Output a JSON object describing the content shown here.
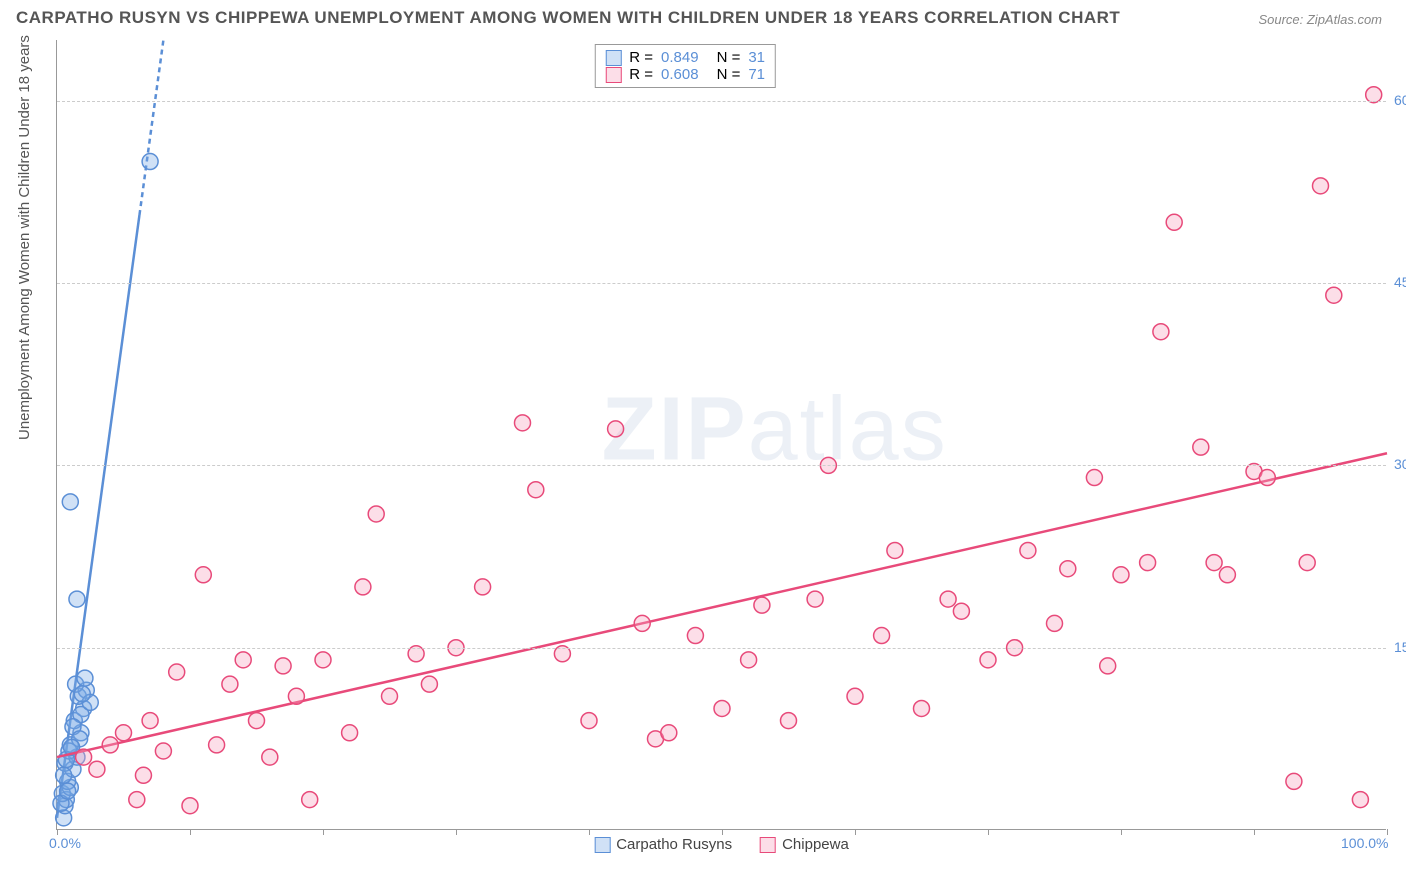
{
  "title": "CARPATHO RUSYN VS CHIPPEWA UNEMPLOYMENT AMONG WOMEN WITH CHILDREN UNDER 18 YEARS CORRELATION CHART",
  "source": "Source: ZipAtlas.com",
  "y_axis_label": "Unemployment Among Women with Children Under 18 years",
  "watermark": {
    "bold": "ZIP",
    "light": "atlas"
  },
  "chart": {
    "type": "scatter",
    "xlim": [
      0,
      100
    ],
    "ylim": [
      0,
      65
    ],
    "x_ticks": [
      0,
      10,
      20,
      30,
      40,
      50,
      60,
      70,
      80,
      90,
      100
    ],
    "x_tick_labels": {
      "0": "0.0%",
      "100": "100.0%"
    },
    "y_gridlines": [
      15,
      30,
      45,
      60
    ],
    "y_tick_labels": {
      "15": "15.0%",
      "30": "30.0%",
      "45": "45.0%",
      "60": "60.0%"
    },
    "background_color": "#ffffff",
    "grid_color": "#cccccc",
    "axis_color": "#999999",
    "tick_label_color": "#5b8fd6",
    "marker_radius": 8,
    "marker_stroke_width": 1.5,
    "trend_line_width": 2.5
  },
  "series": [
    {
      "id": "carpatho",
      "name": "Carpatho Rusyns",
      "fill_color": "rgba(120,170,230,0.35)",
      "stroke_color": "#5b8fd6",
      "R": "0.849",
      "N": "31",
      "trend": {
        "x1": 0,
        "y1": 1,
        "x2": 8,
        "y2": 65,
        "dash_after_x": 6.2
      },
      "points": [
        [
          0.5,
          1
        ],
        [
          0.6,
          2
        ],
        [
          0.7,
          2.5
        ],
        [
          0.4,
          3
        ],
        [
          1,
          3.5
        ],
        [
          0.8,
          4
        ],
        [
          1.2,
          5
        ],
        [
          0.6,
          5.5
        ],
        [
          1.5,
          6
        ],
        [
          1,
          7
        ],
        [
          1.8,
          8
        ],
        [
          1.3,
          9
        ],
        [
          2,
          10
        ],
        [
          1.6,
          11
        ],
        [
          2.2,
          11.5
        ],
        [
          1.4,
          12
        ],
        [
          1.8,
          9.5
        ],
        [
          2.5,
          10.5
        ],
        [
          1.2,
          8.5
        ],
        [
          0.9,
          6.5
        ],
        [
          1.7,
          7.5
        ],
        [
          2.1,
          12.5
        ],
        [
          0.5,
          4.5
        ],
        [
          0.7,
          5.8
        ],
        [
          1.1,
          6.8
        ],
        [
          1.9,
          11.2
        ],
        [
          0.3,
          2.2
        ],
        [
          0.8,
          3.2
        ],
        [
          1.5,
          19
        ],
        [
          1,
          27
        ],
        [
          7,
          55
        ]
      ]
    },
    {
      "id": "chippewa",
      "name": "Chippewa",
      "fill_color": "rgba(245,160,190,0.35)",
      "stroke_color": "#e84a7a",
      "R": "0.608",
      "N": "71",
      "trend": {
        "x1": 0,
        "y1": 6,
        "x2": 100,
        "y2": 31
      },
      "points": [
        [
          2,
          6
        ],
        [
          3,
          5
        ],
        [
          4,
          7
        ],
        [
          5,
          8
        ],
        [
          6,
          2.5
        ],
        [
          7,
          9
        ],
        [
          8,
          6.5
        ],
        [
          9,
          13
        ],
        [
          10,
          2
        ],
        [
          11,
          21
        ],
        [
          12,
          7
        ],
        [
          13,
          12
        ],
        [
          14,
          14
        ],
        [
          15,
          9
        ],
        [
          16,
          6
        ],
        [
          17,
          13.5
        ],
        [
          18,
          11
        ],
        [
          19,
          2.5
        ],
        [
          20,
          14
        ],
        [
          22,
          8
        ],
        [
          23,
          20
        ],
        [
          24,
          26
        ],
        [
          25,
          11
        ],
        [
          27,
          14.5
        ],
        [
          28,
          12
        ],
        [
          30,
          15
        ],
        [
          32,
          20
        ],
        [
          35,
          33.5
        ],
        [
          36,
          28
        ],
        [
          38,
          14.5
        ],
        [
          40,
          9
        ],
        [
          42,
          33
        ],
        [
          44,
          17
        ],
        [
          45,
          7.5
        ],
        [
          48,
          16
        ],
        [
          50,
          10
        ],
        [
          52,
          14
        ],
        [
          53,
          18.5
        ],
        [
          55,
          9
        ],
        [
          57,
          19
        ],
        [
          58,
          30
        ],
        [
          60,
          11
        ],
        [
          62,
          16
        ],
        [
          63,
          23
        ],
        [
          65,
          10
        ],
        [
          67,
          19
        ],
        [
          68,
          18
        ],
        [
          70,
          14
        ],
        [
          73,
          23
        ],
        [
          75,
          17
        ],
        [
          76,
          21.5
        ],
        [
          78,
          29
        ],
        [
          79,
          13.5
        ],
        [
          80,
          21
        ],
        [
          82,
          22
        ],
        [
          83,
          41
        ],
        [
          84,
          50
        ],
        [
          86,
          31.5
        ],
        [
          87,
          22
        ],
        [
          88,
          21
        ],
        [
          90,
          29.5
        ],
        [
          91,
          29
        ],
        [
          93,
          4
        ],
        [
          94,
          22
        ],
        [
          95,
          53
        ],
        [
          96,
          44
        ],
        [
          98,
          2.5
        ],
        [
          99,
          60.5
        ],
        [
          72,
          15
        ],
        [
          46,
          8
        ],
        [
          6.5,
          4.5
        ]
      ]
    }
  ],
  "top_legend": {
    "label_R": "R =",
    "label_N": "N ="
  },
  "bottom_legend_label_1": "Carpatho Rusyns",
  "bottom_legend_label_2": "Chippewa"
}
